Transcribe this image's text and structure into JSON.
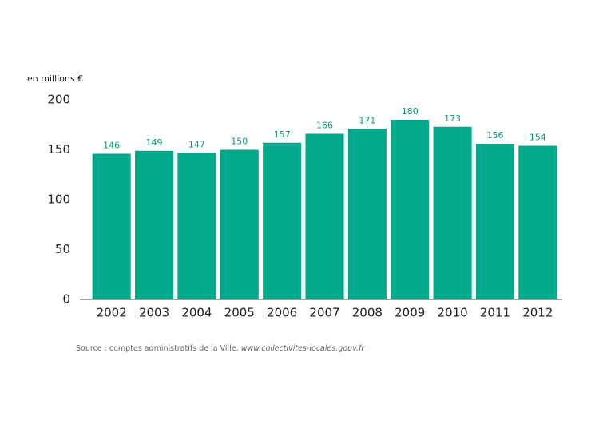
{
  "chart_data": {
    "type": "bar",
    "unit_label": "en millions €",
    "categories": [
      "2002",
      "2003",
      "2004",
      "2005",
      "2006",
      "2007",
      "2008",
      "2009",
      "2010",
      "2011",
      "2012"
    ],
    "values": [
      146,
      149,
      147,
      150,
      157,
      166,
      171,
      180,
      173,
      156,
      154
    ],
    "color": "#00a88c",
    "label_color": "#009a80",
    "ylim": [
      0,
      200
    ],
    "yticks": [
      0,
      50,
      100,
      150,
      200
    ],
    "grid": false,
    "source": "Source : comptes administratifs de la Ville,",
    "source_url": "www.collectivites-locales.gouv.fr"
  }
}
